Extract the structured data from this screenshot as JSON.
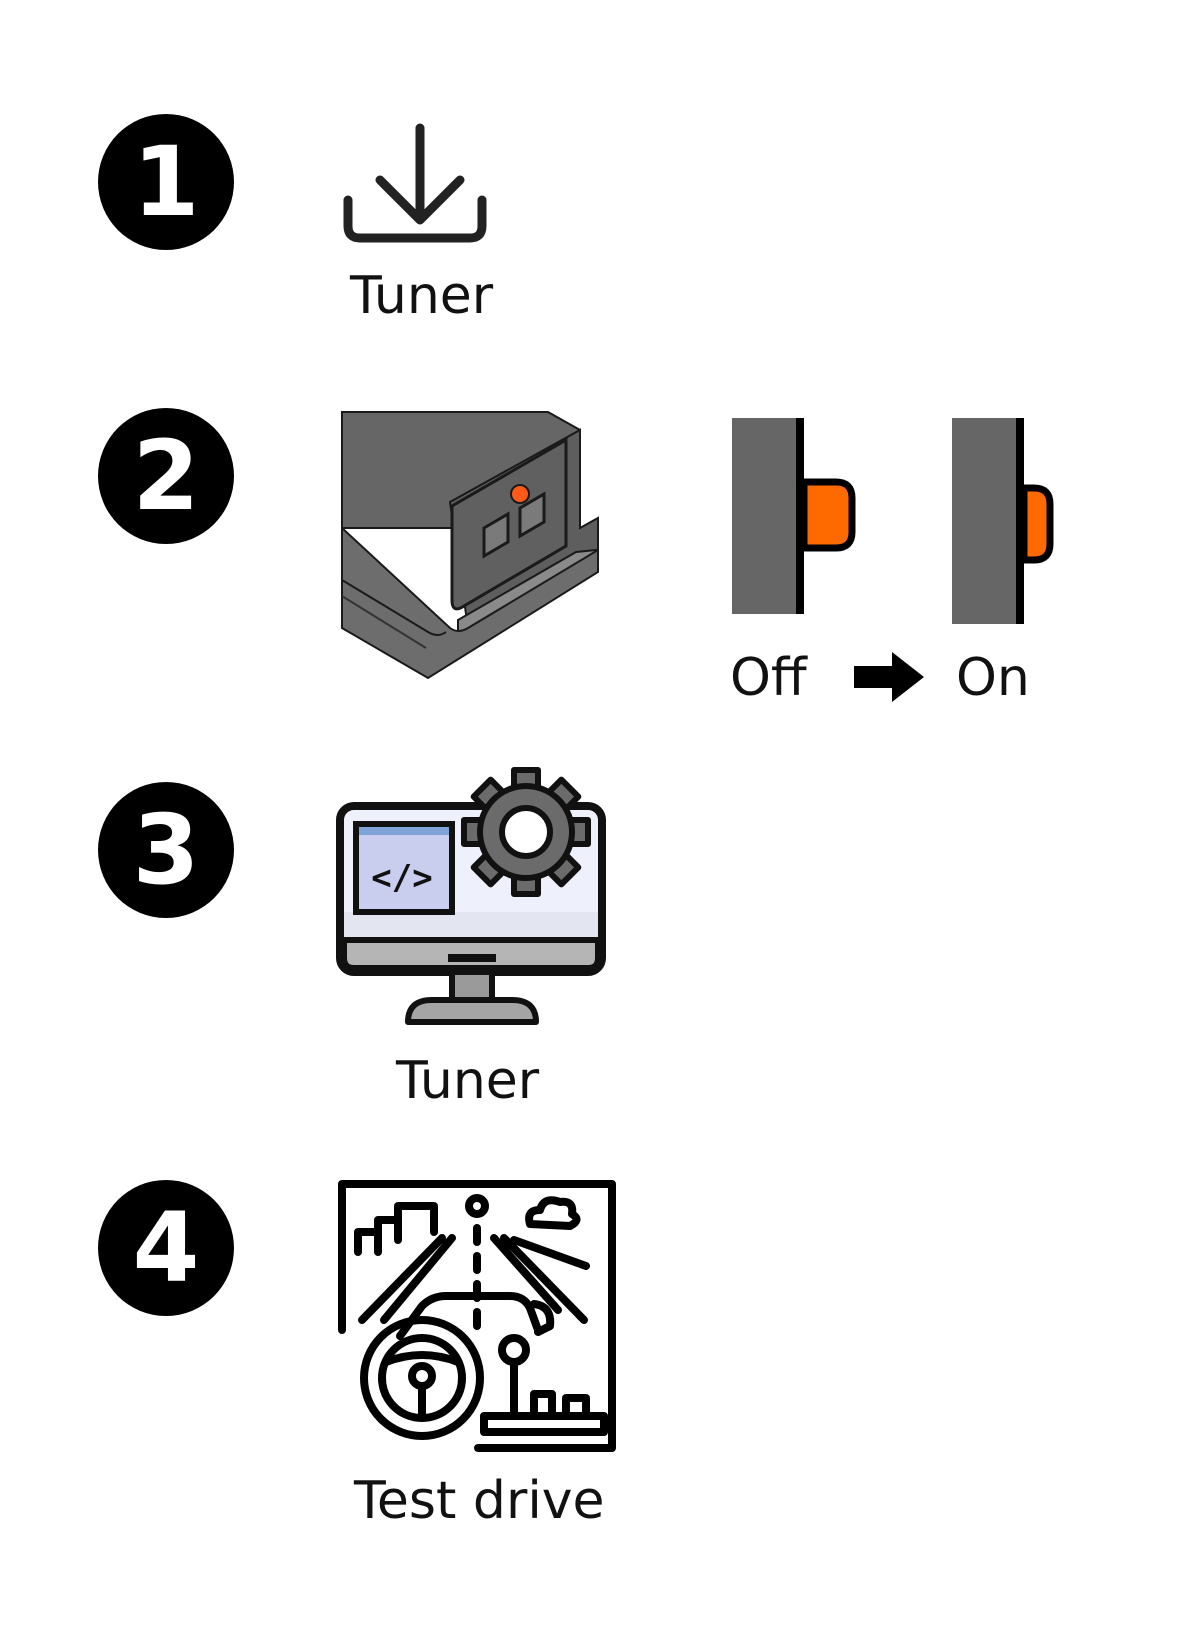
{
  "steps": [
    {
      "number": "1",
      "label": "Tuner",
      "icon": "download-icon"
    },
    {
      "number": "2",
      "icon": "device-icon",
      "switch": {
        "off_label": "Off",
        "on_label": "On",
        "arrow_icon": "arrow-right-icon"
      }
    },
    {
      "number": "3",
      "label": "Tuner",
      "icon": "monitor-gear-icon"
    },
    {
      "number": "4",
      "label": "Test drive",
      "icon": "driving-simulator-icon"
    }
  ],
  "colors": {
    "badge": "#000000",
    "device_body": "#666666",
    "switch_knob": "#ff6a00",
    "screen_panel": "#c9cdee",
    "screen_bar": "#7fa3d6",
    "gear": "#6b6b6b"
  }
}
